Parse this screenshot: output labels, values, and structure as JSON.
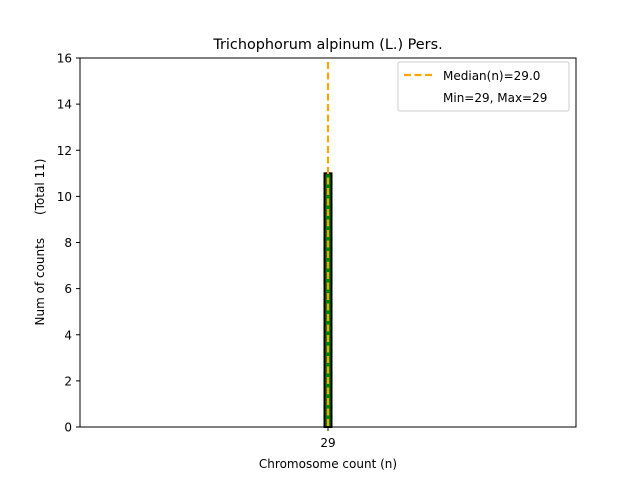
{
  "chart_data": {
    "type": "bar",
    "title": "Trichophorum alpinum (L.) Pers.",
    "xlabel": "Chromosome count (n)",
    "ylabel": "Num of counts      (Total 11)",
    "categories": [
      "29"
    ],
    "x": [
      29
    ],
    "values": [
      11
    ],
    "xlim": [
      19,
      39
    ],
    "ylim": [
      0,
      16
    ],
    "yticks": [
      0,
      2,
      4,
      6,
      8,
      10,
      12,
      14,
      16
    ],
    "median": 29.0,
    "bar_color": "#008000",
    "bar_edge_color": "#000000",
    "median_color": "#FFA500",
    "grid": false,
    "legend": {
      "placement": "top-right",
      "entries": [
        {
          "label": "Median(n)=29.0",
          "style": "dashed-line",
          "color": "#FFA500"
        },
        {
          "label": "Min=29, Max=29",
          "style": "none"
        }
      ]
    }
  }
}
